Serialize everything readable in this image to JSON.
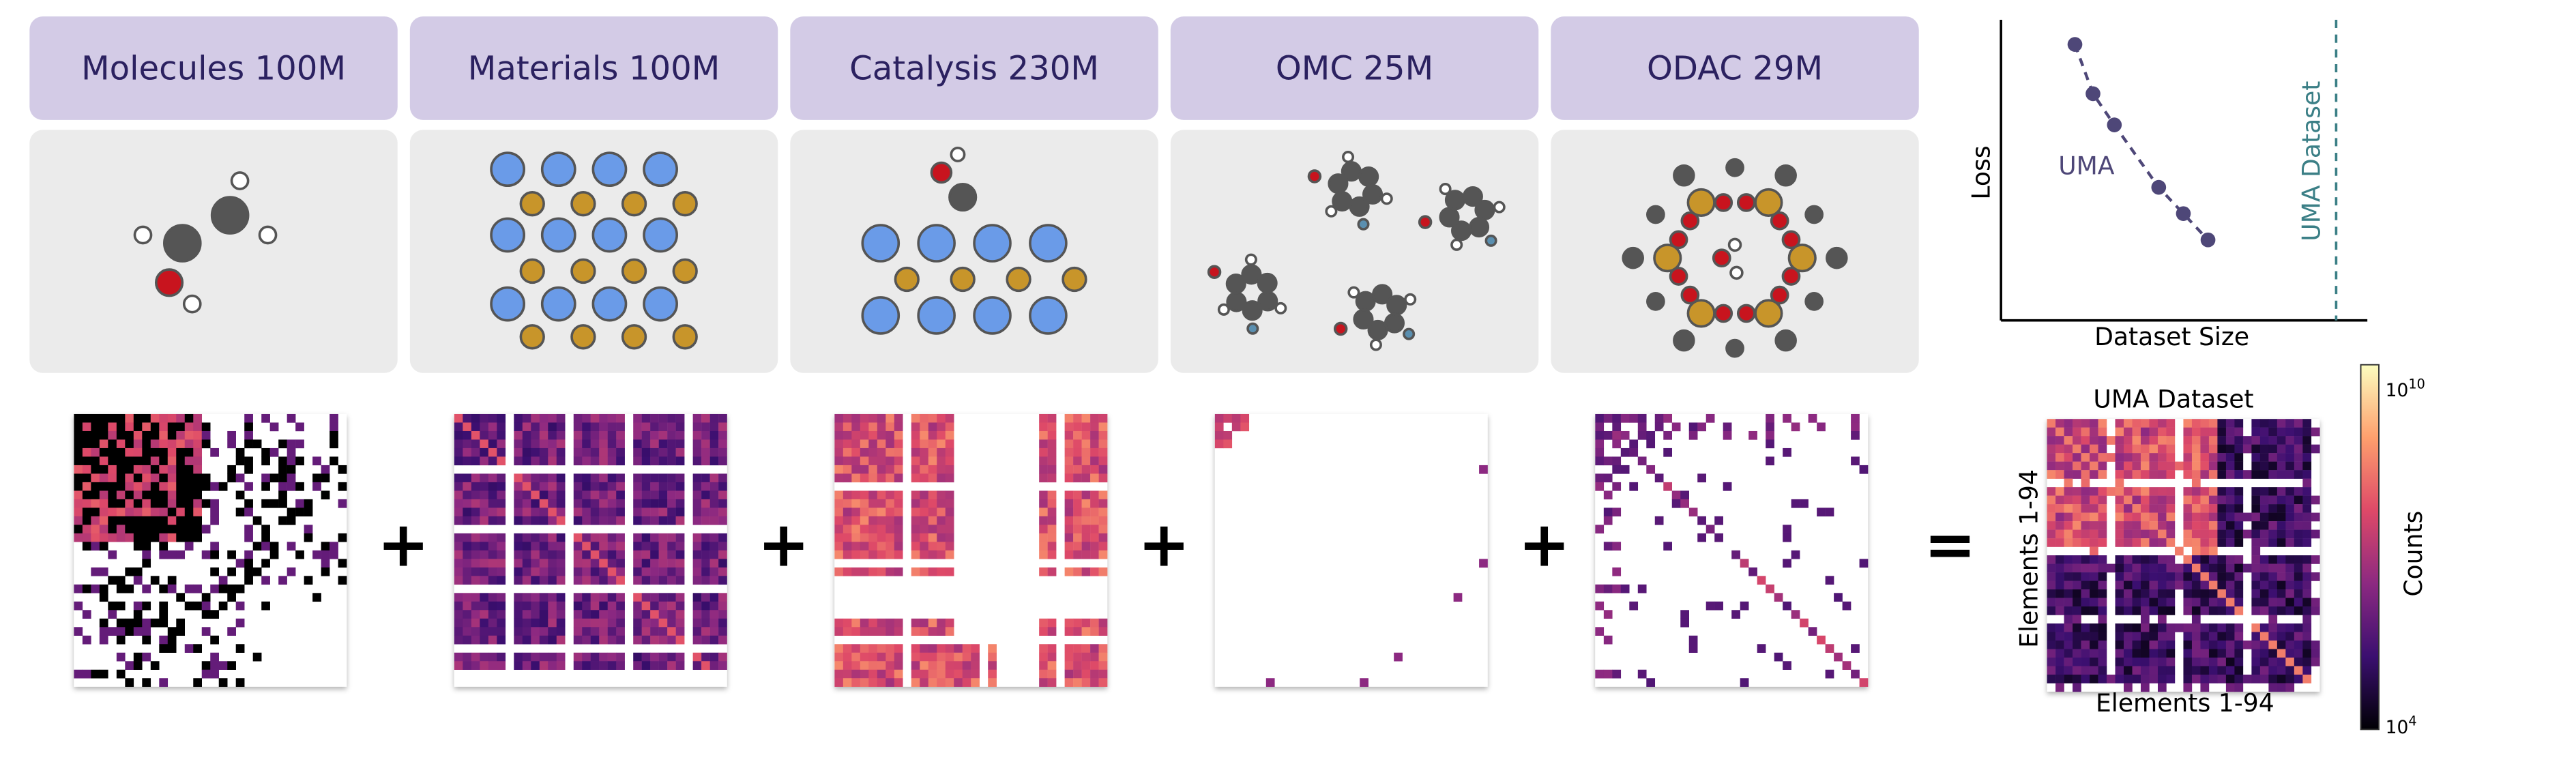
{
  "panels": [
    {
      "title": "Molecules 100M"
    },
    {
      "title": "Materials 100M"
    },
    {
      "title": "Catalysis 230M"
    },
    {
      "title": "OMC 25M"
    },
    {
      "title": "ODAC 29M"
    }
  ],
  "operators": [
    "+",
    "+",
    "+",
    "+",
    "="
  ],
  "scaling_plot": {
    "y_label": "Loss",
    "x_label": "Dataset Size",
    "curve_label": "UMA",
    "line_label": "UMA Dataset"
  },
  "combined_heatmap": {
    "title": "UMA Dataset",
    "x_label": "Elements 1-94",
    "y_label": "Elements 1-94",
    "colorbar": {
      "label": "Counts",
      "ticks": [
        {
          "base": "10",
          "exponent": "10"
        },
        {
          "base": "10",
          "exponent": "4"
        }
      ]
    }
  }
}
